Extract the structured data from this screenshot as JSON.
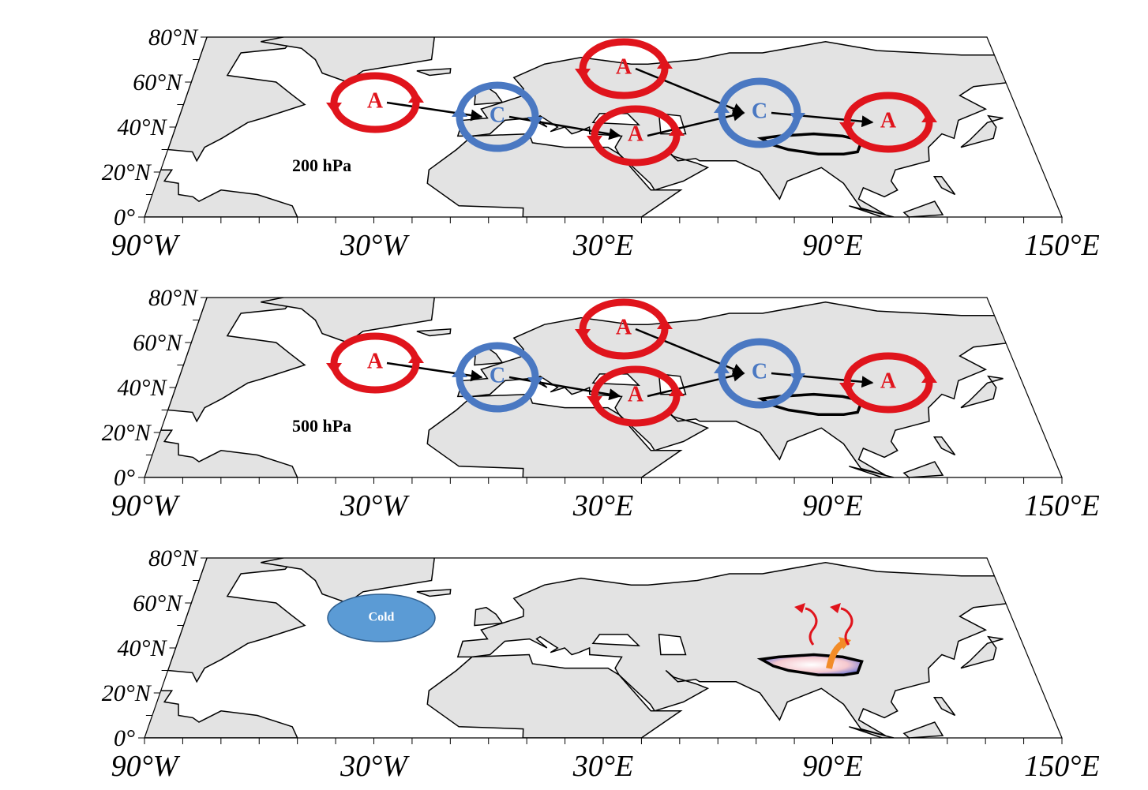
{
  "panels": [
    {
      "lat_labels": [
        "80°N",
        "60°N",
        "40°N",
        "20°N",
        "0°"
      ],
      "lon_labels": [
        "90°W",
        "30°W",
        "30°E",
        "90°E",
        "150°E"
      ],
      "level": "200 hPa",
      "systems": [
        {
          "label": "A"
        },
        {
          "label": "C"
        },
        {
          "label": "A"
        },
        {
          "label": "A"
        },
        {
          "label": "C"
        },
        {
          "label": "A"
        }
      ]
    },
    {
      "lat_labels": [
        "80°N",
        "60°N",
        "40°N",
        "20°N",
        "0°"
      ],
      "lon_labels": [
        "90°W",
        "30°W",
        "30°E",
        "90°E",
        "150°E"
      ],
      "level": "500 hPa",
      "systems": [
        {
          "label": "A"
        },
        {
          "label": "C"
        },
        {
          "label": "A"
        },
        {
          "label": "A"
        },
        {
          "label": "C"
        },
        {
          "label": "A"
        }
      ]
    },
    {
      "lat_labels": [
        "80°N",
        "60°N",
        "40°N",
        "20°N",
        "0°"
      ],
      "lon_labels": [
        "90°W",
        "30°W",
        "30°E",
        "90°E",
        "150°E"
      ],
      "cold": "Cold"
    }
  ]
}
